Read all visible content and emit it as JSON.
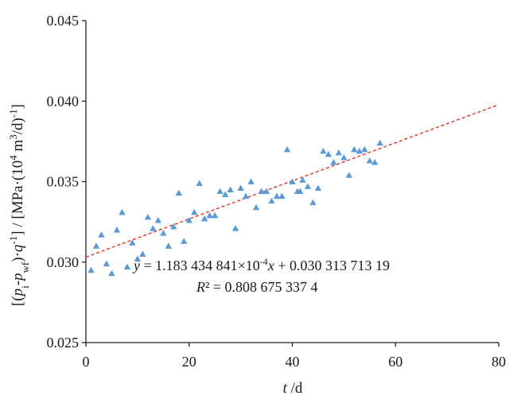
{
  "chart_data": {
    "type": "scatter",
    "xlim": [
      0,
      80
    ],
    "ylim": [
      0.025,
      0.045
    ],
    "x_ticks": [
      "0",
      "20",
      "40",
      "60",
      "80"
    ],
    "y_ticks": [
      "0.025",
      "0.030",
      "0.035",
      "0.040",
      "0.045"
    ],
    "xlabel": {
      "italic": "t",
      "unit": " /d"
    },
    "ylabel": "[(pi-pwf)·q-1] / [MPa·(104 m3/d)-1]",
    "grid": false,
    "marker": "triangle",
    "marker_color": "#5b9bd5",
    "trendline": {
      "slope": 0.0001183434841,
      "intercept": 0.03031371319,
      "color": "#e0301e",
      "style": "dashed",
      "x_range": [
        0,
        80
      ]
    },
    "annotation": {
      "equation": {
        "y": "y",
        "slope_part": " = 1.183 434 841×10",
        "exponent": "-4",
        "x": "x",
        "rest": " + 0.030 313 713 19"
      },
      "r2": {
        "label": "R",
        "rest": "² = 0.808 675 337 4"
      }
    },
    "points": [
      [
        1,
        0.0295
      ],
      [
        2,
        0.031
      ],
      [
        3,
        0.0317
      ],
      [
        4,
        0.0299
      ],
      [
        5,
        0.0293
      ],
      [
        6,
        0.032
      ],
      [
        7,
        0.0331
      ],
      [
        8,
        0.0297
      ],
      [
        9,
        0.0312
      ],
      [
        10,
        0.0302
      ],
      [
        11,
        0.0305
      ],
      [
        12,
        0.0328
      ],
      [
        13,
        0.0321
      ],
      [
        14,
        0.0326
      ],
      [
        15,
        0.0318
      ],
      [
        16,
        0.031
      ],
      [
        17,
        0.0322
      ],
      [
        18,
        0.0343
      ],
      [
        19,
        0.0313
      ],
      [
        20,
        0.0326
      ],
      [
        21,
        0.0331
      ],
      [
        22,
        0.0349
      ],
      [
        23,
        0.0327
      ],
      [
        24,
        0.0329
      ],
      [
        25,
        0.0329
      ],
      [
        26,
        0.0344
      ],
      [
        27,
        0.0342
      ],
      [
        28,
        0.0345
      ],
      [
        29,
        0.0321
      ],
      [
        30,
        0.0346
      ],
      [
        31,
        0.0341
      ],
      [
        32,
        0.035
      ],
      [
        33,
        0.0334
      ],
      [
        34,
        0.0344
      ],
      [
        35,
        0.0344
      ],
      [
        36,
        0.0338
      ],
      [
        37,
        0.0341
      ],
      [
        38,
        0.0341
      ],
      [
        39,
        0.037
      ],
      [
        40,
        0.035
      ],
      [
        41,
        0.0344
      ],
      [
        41.5,
        0.0344
      ],
      [
        42,
        0.0351
      ],
      [
        43,
        0.0347
      ],
      [
        44,
        0.0337
      ],
      [
        45,
        0.0346
      ],
      [
        46,
        0.0369
      ],
      [
        47,
        0.0367
      ],
      [
        48,
        0.0362
      ],
      [
        49,
        0.0368
      ],
      [
        50,
        0.0365
      ],
      [
        51,
        0.0354
      ],
      [
        52,
        0.037
      ],
      [
        53,
        0.0369
      ],
      [
        54,
        0.037
      ],
      [
        55,
        0.0363
      ],
      [
        56,
        0.0362
      ],
      [
        57,
        0.0374
      ]
    ]
  }
}
